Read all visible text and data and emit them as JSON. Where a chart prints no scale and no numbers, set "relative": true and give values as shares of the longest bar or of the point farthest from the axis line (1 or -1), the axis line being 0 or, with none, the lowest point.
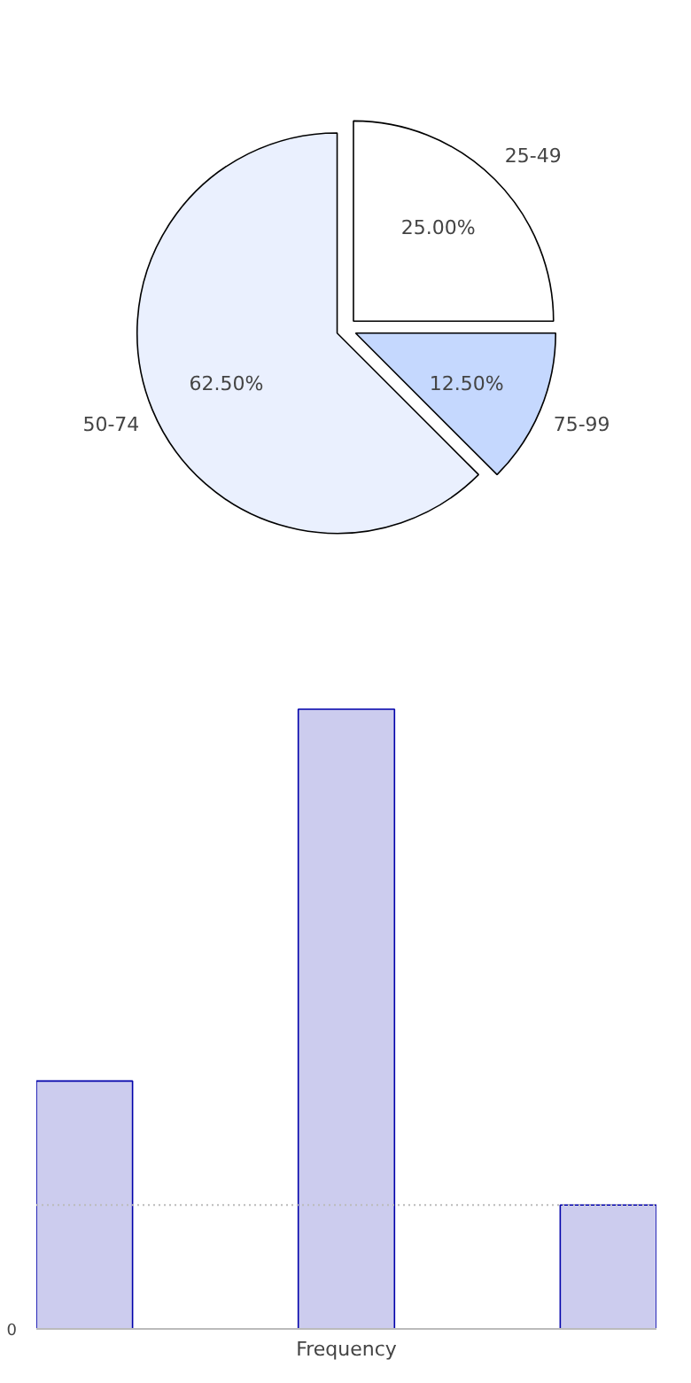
{
  "chart_data": [
    {
      "type": "pie",
      "categories": [
        "25-49",
        "50-74",
        "75-99"
      ],
      "values": [
        25,
        62.5,
        12.5
      ],
      "colors": [
        "#ffffff",
        "#eaf0fe",
        "#c5d8fe"
      ],
      "value_labels": [
        "25.00%",
        "62.50%",
        "12.50%"
      ]
    },
    {
      "type": "bar",
      "categories": [
        null,
        null,
        null
      ],
      "values": [
        0.4,
        1,
        0.2
      ],
      "colors": [
        "#ccccee",
        "#ccccee",
        "#ccccee"
      ],
      "relative": true,
      "xlabel": "Frequency",
      "annotations": [
        "0"
      ],
      "ref_lines": [
        {
          "axis": "y",
          "value": 0.2,
          "label": null,
          "line_style": "dotted",
          "color": "#bbbbbb"
        }
      ]
    }
  ]
}
